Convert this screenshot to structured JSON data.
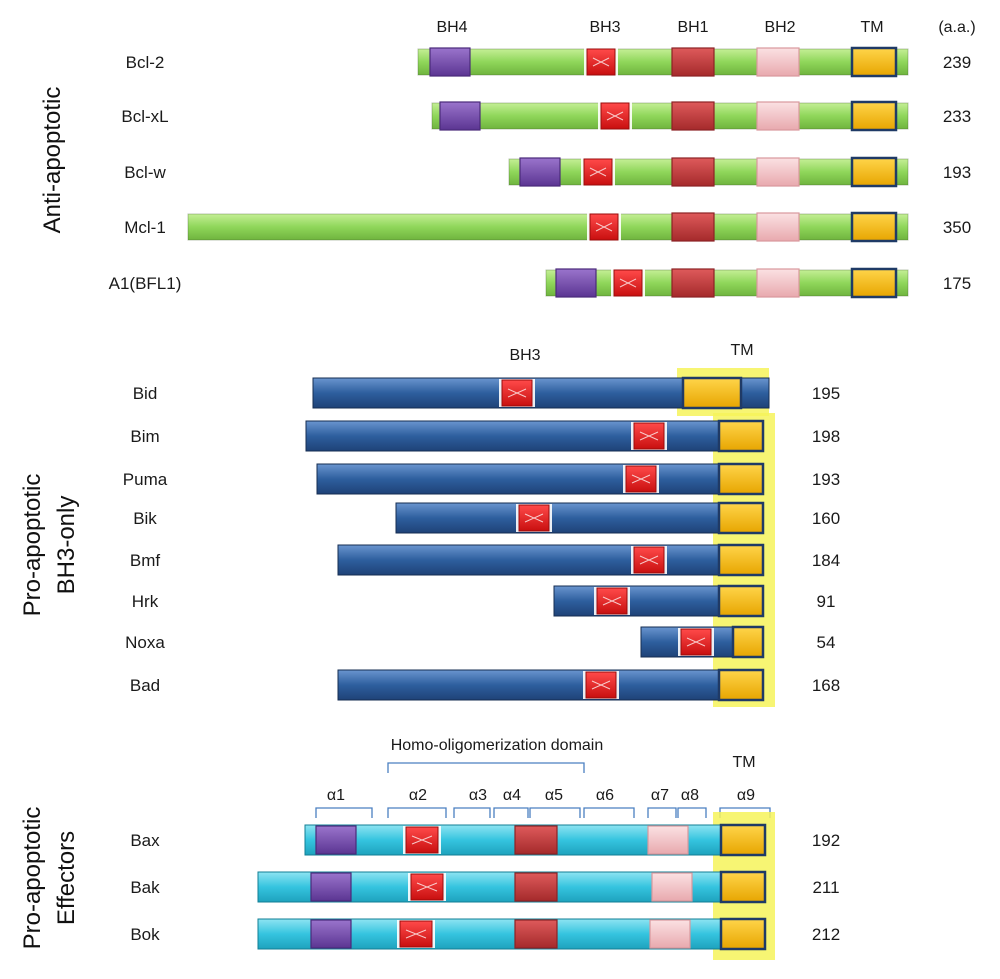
{
  "colors": {
    "anti_bar": "#8fd65a",
    "bh3only_bar": "#2e5f9e",
    "effector_bar": "#35c4df",
    "bh4": "#7a4fb0",
    "bh3": "#e01b1b",
    "bh1": "#c0393a",
    "bh2": "#f2c2c6",
    "tm": "#f7b90a",
    "tm_border": "#1f3a66",
    "tm_glow": "#f3f35e",
    "bracket": "#4a7fc1"
  },
  "anti": {
    "section_label": "Anti-apoptotic",
    "headers": {
      "bh4": "BH4",
      "bh3": "BH3",
      "bh1": "BH1",
      "bh2": "BH2",
      "tm": "TM",
      "aa": "(a.a.)"
    },
    "proteins": [
      {
        "name": "Bcl-2",
        "length": "239"
      },
      {
        "name": "Bcl-xL",
        "length": "233"
      },
      {
        "name": "Bcl-w",
        "length": "193"
      },
      {
        "name": "Mcl-1",
        "length": "350"
      },
      {
        "name": "A1(BFL1)",
        "length": "175"
      }
    ]
  },
  "bh3only": {
    "section_label_1": "Pro-apoptotic",
    "section_label_2": "BH3-only",
    "headers": {
      "bh3": "BH3",
      "tm": "TM"
    },
    "proteins": [
      {
        "name": "Bid",
        "length": "195"
      },
      {
        "name": "Bim",
        "length": "198"
      },
      {
        "name": "Puma",
        "length": "193"
      },
      {
        "name": "Bik",
        "length": "160"
      },
      {
        "name": "Bmf",
        "length": "184"
      },
      {
        "name": "Hrk",
        "length": "91"
      },
      {
        "name": "Noxa",
        "length": "54"
      },
      {
        "name": "Bad",
        "length": "168"
      }
    ]
  },
  "effectors": {
    "section_label_1": "Pro-apoptotic",
    "section_label_2": "Effectors",
    "oligo_label": "Homo-oligomerization domain",
    "tm_label": "TM",
    "helices": [
      "α1",
      "α2",
      "α3",
      "α4",
      "α5",
      "α6",
      "α7",
      "α8",
      "α9"
    ],
    "proteins": [
      {
        "name": "Bax",
        "length": "192"
      },
      {
        "name": "Bak",
        "length": "211"
      },
      {
        "name": "Bok",
        "length": "212"
      }
    ]
  }
}
